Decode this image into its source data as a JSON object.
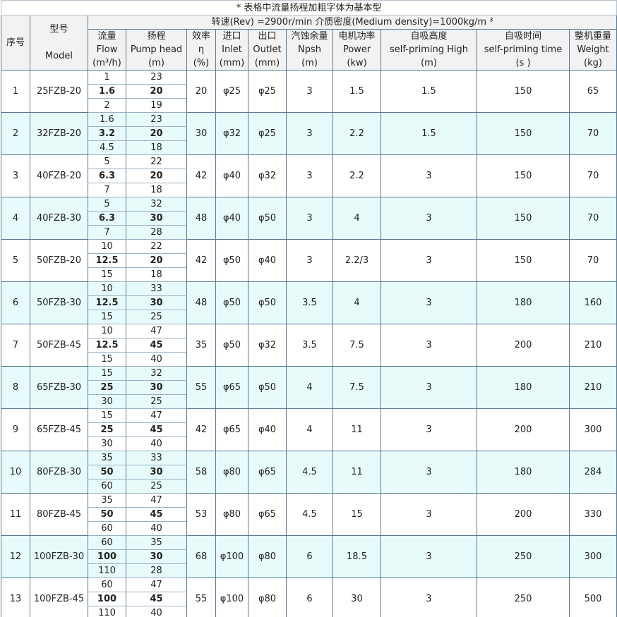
{
  "note": "* 表格中流量扬程加粗字体为基本型",
  "conditions": "转速(Rev) =2900r/min   介质密度(Medium density)=1000kg/m ³",
  "headers": {
    "no": "序号",
    "model_cn": "型号",
    "model_en": "Model",
    "flow": [
      "流量",
      "Flow",
      "(m³/h)"
    ],
    "head": [
      "扬程",
      "Pump head",
      "(m)"
    ],
    "eff": [
      "效率",
      "η",
      "(%)"
    ],
    "inlet": [
      "进口",
      "Inlet",
      "(mm)"
    ],
    "outlet": [
      "出口",
      "Outlet",
      "(mm)"
    ],
    "npsh": [
      "汽蚀余量",
      "Npsh",
      "(m)"
    ],
    "power": [
      "电机功率",
      "Power",
      "(kw)"
    ],
    "sph": [
      "自吸高度",
      "self-priming High",
      "(m)"
    ],
    "spt": [
      "自吸时间",
      "self-priming time",
      "(s )"
    ],
    "weight": [
      "整机重量",
      "Weight",
      "(kg)"
    ]
  },
  "colors": {
    "alt_row": "#e8fbfb",
    "header_bg": "#f2f2f2",
    "border": "#5a7897"
  },
  "rows": [
    {
      "no": "1",
      "model": "25FZB-20",
      "flow": [
        "1",
        "1.6",
        "2"
      ],
      "head": [
        "23",
        "20",
        "19"
      ],
      "eff": "20",
      "inlet": "φ25",
      "outlet": "φ25",
      "npsh": "3",
      "power": "1.5",
      "sph": "1.5",
      "spt": "150",
      "weight": "65"
    },
    {
      "no": "2",
      "model": "32FZB-20",
      "flow": [
        "1.6",
        "3.2",
        "4.5"
      ],
      "head": [
        "23",
        "20",
        "18"
      ],
      "eff": "30",
      "inlet": "φ32",
      "outlet": "φ25",
      "npsh": "3",
      "power": "2.2",
      "sph": "1.5",
      "spt": "150",
      "weight": "70"
    },
    {
      "no": "3",
      "model": "40FZB-20",
      "flow": [
        "5",
        "6.3",
        "7"
      ],
      "head": [
        "22",
        "20",
        "18"
      ],
      "eff": "42",
      "inlet": "φ40",
      "outlet": "φ32",
      "npsh": "3",
      "power": "2.2",
      "sph": "3",
      "spt": "150",
      "weight": "70"
    },
    {
      "no": "4",
      "model": "40FZB-30",
      "flow": [
        "5",
        "6.3",
        "7"
      ],
      "head": [
        "32",
        "30",
        "28"
      ],
      "eff": "48",
      "inlet": "φ40",
      "outlet": "φ50",
      "npsh": "3",
      "power": "4",
      "sph": "3",
      "spt": "150",
      "weight": "70"
    },
    {
      "no": "5",
      "model": "50FZB-20",
      "flow": [
        "10",
        "12.5",
        "15"
      ],
      "head": [
        "22",
        "20",
        "18"
      ],
      "eff": "42",
      "inlet": "φ50",
      "outlet": "φ40",
      "npsh": "3",
      "power": "2.2/3",
      "sph": "3",
      "spt": "150",
      "weight": "70"
    },
    {
      "no": "6",
      "model": "50FZB-30",
      "flow": [
        "10",
        "12.5",
        "15"
      ],
      "head": [
        "33",
        "30",
        "25"
      ],
      "eff": "48",
      "inlet": "φ50",
      "outlet": "φ50",
      "npsh": "3.5",
      "power": "4",
      "sph": "3",
      "spt": "180",
      "weight": "160"
    },
    {
      "no": "7",
      "model": "50FZB-45",
      "flow": [
        "10",
        "12.5",
        "15"
      ],
      "head": [
        "47",
        "45",
        "40"
      ],
      "eff": "35",
      "inlet": "φ50",
      "outlet": "φ32",
      "npsh": "3.5",
      "power": "7.5",
      "sph": "3",
      "spt": "200",
      "weight": "210"
    },
    {
      "no": "8",
      "model": "65FZB-30",
      "flow": [
        "15",
        "25",
        "30"
      ],
      "head": [
        "32",
        "30",
        "25"
      ],
      "eff": "55",
      "inlet": "φ65",
      "outlet": "φ50",
      "npsh": "4",
      "power": "7.5",
      "sph": "3",
      "spt": "180",
      "weight": "210"
    },
    {
      "no": "9",
      "model": "65FZB-45",
      "flow": [
        "15",
        "25",
        "30"
      ],
      "head": [
        "47",
        "45",
        "40"
      ],
      "eff": "42",
      "inlet": "φ65",
      "outlet": "φ40",
      "npsh": "4",
      "power": "11",
      "sph": "3",
      "spt": "200",
      "weight": "300"
    },
    {
      "no": "10",
      "model": "80FZB-30",
      "flow": [
        "35",
        "50",
        "60"
      ],
      "head": [
        "33",
        "30",
        "25"
      ],
      "eff": "58",
      "inlet": "φ80",
      "outlet": "φ65",
      "npsh": "4.5",
      "power": "11",
      "sph": "3",
      "spt": "180",
      "weight": "284"
    },
    {
      "no": "11",
      "model": "80FZB-45",
      "flow": [
        "35",
        "50",
        "60"
      ],
      "head": [
        "47",
        "45",
        "40"
      ],
      "eff": "53",
      "inlet": "φ80",
      "outlet": "φ65",
      "npsh": "4.5",
      "power": "15",
      "sph": "3",
      "spt": "200",
      "weight": "330"
    },
    {
      "no": "12",
      "model": "100FZB-30",
      "flow": [
        "60",
        "100",
        "110"
      ],
      "head": [
        "35",
        "30",
        "28"
      ],
      "eff": "68",
      "inlet": "φ100",
      "outlet": "φ80",
      "npsh": "6",
      "power": "18.5",
      "sph": "3",
      "spt": "250",
      "weight": "300"
    },
    {
      "no": "13",
      "model": "100FZB-45",
      "flow": [
        "60",
        "100",
        "110"
      ],
      "head": [
        "47",
        "45",
        "40"
      ],
      "eff": "55",
      "inlet": "φ100",
      "outlet": "φ80",
      "npsh": "6",
      "power": "30",
      "sph": "3",
      "spt": "250",
      "weight": "500"
    }
  ]
}
